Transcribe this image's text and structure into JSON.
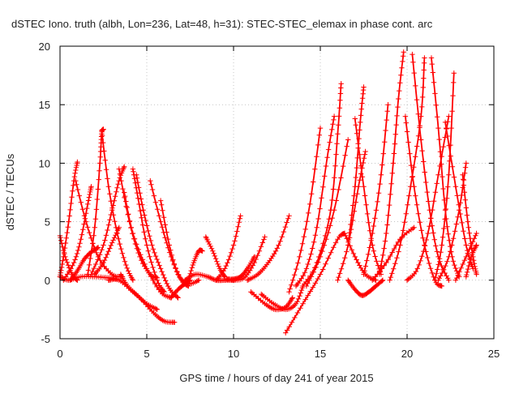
{
  "chart_data": {
    "type": "scatter",
    "title": "dSTEC Iono. truth (albh, Lon=236, Lat=48, h=31): STEC-STEC_elemax in phase cont. arc",
    "xlabel": "GPS time / hours of day 241 of year 2015",
    "ylabel": "dSTEC  / TECUs",
    "xlim": [
      0,
      25
    ],
    "ylim": [
      -5,
      20
    ],
    "xticks": [
      "0",
      "5",
      "10",
      "15",
      "20",
      "25"
    ],
    "yticks": [
      "-5",
      "0",
      "5",
      "10",
      "15",
      "20"
    ],
    "grid": true,
    "marker": "+",
    "color": "#ff0000",
    "series": [
      {
        "x": [
          0.0,
          0.3,
          0.7,
          1.0
        ],
        "y": [
          3.8,
          2.0,
          0.5,
          0.0
        ]
      },
      {
        "x": [
          0.0,
          0.2,
          0.5,
          0.8,
          1.0
        ],
        "y": [
          0.3,
          2.0,
          5.0,
          8.5,
          10.1
        ]
      },
      {
        "x": [
          0.2,
          0.8,
          1.2,
          1.6,
          1.8
        ],
        "y": [
          0.0,
          1.5,
          3.5,
          6.5,
          8.0
        ]
      },
      {
        "x": [
          0.0,
          0.5,
          1.2,
          2.0,
          2.8,
          3.3
        ],
        "y": [
          0.3,
          0.0,
          0.3,
          0.3,
          0.2,
          0.1
        ]
      },
      {
        "x": [
          0.6,
          1.0,
          1.4,
          1.8,
          2.2
        ],
        "y": [
          0.0,
          0.8,
          1.8,
          2.4,
          2.8
        ]
      },
      {
        "x": [
          0.9,
          1.5,
          2.2,
          3.0,
          3.6
        ],
        "y": [
          8.5,
          5.0,
          2.0,
          0.5,
          0.3
        ]
      },
      {
        "x": [
          1.6,
          2.0,
          2.3,
          2.4,
          2.5
        ],
        "y": [
          0.5,
          4.5,
          10.0,
          12.5,
          12.9
        ]
      },
      {
        "x": [
          2.4,
          2.8,
          3.3,
          3.8,
          4.2
        ],
        "y": [
          12.8,
          8.0,
          4.0,
          1.3,
          0.0
        ]
      },
      {
        "x": [
          1.8,
          2.5,
          3.0,
          3.4,
          3.7
        ],
        "y": [
          0.5,
          3.0,
          6.0,
          8.5,
          9.7
        ]
      },
      {
        "x": [
          3.4,
          4.0,
          4.6,
          5.2,
          5.6
        ],
        "y": [
          9.5,
          5.0,
          2.0,
          0.5,
          0.2
        ]
      },
      {
        "x": [
          2.0,
          2.5,
          3.0,
          3.4
        ],
        "y": [
          0.5,
          1.5,
          3.2,
          4.5
        ]
      },
      {
        "x": [
          2.8,
          3.4,
          4.2,
          5.0,
          5.6
        ],
        "y": [
          0.0,
          0.0,
          -1.0,
          -2.0,
          -2.5
        ]
      },
      {
        "x": [
          3.5,
          3.9,
          4.6,
          5.4,
          6.0,
          6.6
        ],
        "y": [
          0.5,
          -0.5,
          -1.5,
          -2.8,
          -3.5,
          -3.6
        ]
      },
      {
        "x": [
          3.7,
          4.2,
          5.0,
          5.8,
          6.4
        ],
        "y": [
          7.5,
          4.0,
          1.0,
          -1.0,
          -1.5
        ]
      },
      {
        "x": [
          4.2,
          4.5,
          5.0,
          5.6,
          6.0
        ],
        "y": [
          9.5,
          7.0,
          3.0,
          0.0,
          -1.0
        ]
      },
      {
        "x": [
          4.4,
          4.8,
          5.3,
          5.8,
          6.3,
          6.8
        ],
        "y": [
          9.0,
          6.0,
          3.0,
          1.0,
          -0.7,
          -1.5
        ]
      },
      {
        "x": [
          5.2,
          5.8,
          6.4,
          7.0,
          7.4
        ],
        "y": [
          8.5,
          5.0,
          2.0,
          0.0,
          -0.5
        ]
      },
      {
        "x": [
          5.8,
          6.3,
          6.8,
          7.4,
          8.0
        ],
        "y": [
          6.8,
          3.0,
          0.5,
          -0.3,
          0.0
        ]
      },
      {
        "x": [
          6.4,
          6.8,
          7.2,
          7.5
        ],
        "y": [
          -1.5,
          -0.8,
          -0.3,
          0.0
        ]
      },
      {
        "x": [
          7.2,
          7.8,
          8.5,
          9.0,
          9.5,
          10.0
        ],
        "y": [
          0.0,
          0.5,
          0.3,
          0.0,
          0.0,
          0.0
        ]
      },
      {
        "x": [
          7.4,
          7.7,
          8.0,
          8.2
        ],
        "y": [
          0.0,
          1.5,
          2.5,
          2.5
        ]
      },
      {
        "x": [
          8.4,
          8.8,
          9.2,
          9.5
        ],
        "y": [
          3.7,
          2.5,
          1.0,
          0.3
        ]
      },
      {
        "x": [
          9.0,
          9.5,
          10.0,
          10.4
        ],
        "y": [
          0.0,
          1.0,
          3.0,
          5.5
        ]
      },
      {
        "x": [
          9.6,
          10.0,
          10.4,
          10.8,
          11.2
        ],
        "y": [
          0.1,
          0.1,
          0.3,
          1.0,
          2.0
        ]
      },
      {
        "x": [
          10.0,
          10.6,
          11.2,
          11.8
        ],
        "y": [
          0.0,
          0.2,
          1.5,
          3.7
        ]
      },
      {
        "x": [
          10.8,
          11.4,
          12.0,
          12.6,
          13.2
        ],
        "y": [
          0.0,
          0.5,
          1.5,
          3.0,
          5.5
        ]
      },
      {
        "x": [
          11.0,
          11.8,
          12.4,
          13.0,
          13.4
        ],
        "y": [
          -1.0,
          -2.0,
          -2.5,
          -2.3,
          -1.5
        ]
      },
      {
        "x": [
          11.6,
          12.3,
          13.0,
          13.6,
          14.0
        ],
        "y": [
          -1.2,
          -2.0,
          -2.5,
          -2.0,
          -0.5
        ]
      },
      {
        "x": [
          13.0,
          14.0,
          15.0,
          16.0,
          16.4
        ],
        "y": [
          -4.5,
          -2.0,
          0.5,
          3.5,
          4.0
        ]
      },
      {
        "x": [
          13.2,
          13.8,
          14.4,
          15.0
        ],
        "y": [
          -1.0,
          2.0,
          6.5,
          13.0
        ]
      },
      {
        "x": [
          13.6,
          14.2,
          14.8,
          15.4,
          15.8
        ],
        "y": [
          -0.5,
          1.0,
          4.5,
          10.5,
          14.0
        ]
      },
      {
        "x": [
          14.0,
          14.8,
          15.6,
          16.0,
          16.2
        ],
        "y": [
          -0.5,
          1.5,
          6.0,
          12.5,
          16.8
        ]
      },
      {
        "x": [
          14.2,
          15.0,
          15.8,
          16.6
        ],
        "y": [
          -0.5,
          2.0,
          6.0,
          12.0
        ]
      },
      {
        "x": [
          16.4,
          17.0,
          17.6,
          18.2
        ],
        "y": [
          4.0,
          2.0,
          0.5,
          0.0
        ]
      },
      {
        "x": [
          16.0,
          16.6,
          17.2,
          17.6
        ],
        "y": [
          0.0,
          3.0,
          8.0,
          11.0
        ]
      },
      {
        "x": [
          16.6,
          17.0,
          17.3,
          17.5
        ],
        "y": [
          3.0,
          8.0,
          13.5,
          16.5
        ]
      },
      {
        "x": [
          17.0,
          17.5,
          18.0,
          18.5
        ],
        "y": [
          13.8,
          8.0,
          3.0,
          0.5
        ]
      },
      {
        "x": [
          16.6,
          17.0,
          17.4,
          17.8,
          18.2,
          18.6
        ],
        "y": [
          0.0,
          -0.8,
          -1.3,
          -1.0,
          -0.5,
          0.0
        ]
      },
      {
        "x": [
          17.5,
          18.0,
          18.5,
          18.9
        ],
        "y": [
          0.5,
          4.0,
          9.0,
          15.0
        ]
      },
      {
        "x": [
          18.4,
          18.8,
          19.2,
          19.5,
          19.8
        ],
        "y": [
          0.5,
          4.0,
          10.0,
          15.5,
          19.5
        ]
      },
      {
        "x": [
          18.0,
          18.8,
          19.6,
          20.4
        ],
        "y": [
          0.0,
          1.5,
          3.5,
          4.5
        ]
      },
      {
        "x": [
          19.0,
          19.6,
          20.2,
          20.8,
          21.0
        ],
        "y": [
          0.0,
          3.0,
          8.0,
          14.0,
          19.0
        ]
      },
      {
        "x": [
          19.9,
          20.4,
          21.0,
          21.6,
          22.0
        ],
        "y": [
          14.0,
          8.0,
          3.0,
          0.0,
          -0.5
        ]
      },
      {
        "x": [
          20.3,
          20.8,
          21.3,
          21.8,
          22.4
        ],
        "y": [
          19.3,
          12.0,
          6.0,
          2.0,
          0.0
        ]
      },
      {
        "x": [
          20.0,
          20.6,
          21.2,
          21.8,
          22.4
        ],
        "y": [
          0.0,
          1.0,
          4.0,
          9.0,
          14.0
        ]
      },
      {
        "x": [
          21.4,
          21.8,
          22.2,
          22.6,
          23.0
        ],
        "y": [
          19.0,
          13.0,
          6.0,
          2.0,
          0.3
        ]
      },
      {
        "x": [
          21.6,
          22.0,
          22.4,
          22.7
        ],
        "y": [
          0.0,
          3.0,
          9.0,
          17.7
        ]
      },
      {
        "x": [
          21.8,
          22.4,
          23.0,
          23.4
        ],
        "y": [
          0.0,
          2.0,
          6.0,
          10.0
        ]
      },
      {
        "x": [
          22.2,
          22.8,
          23.4,
          23.8
        ],
        "y": [
          13.5,
          8.0,
          3.0,
          1.0
        ]
      },
      {
        "x": [
          22.8,
          23.4,
          24.0
        ],
        "y": [
          0.0,
          2.0,
          4.0
        ]
      },
      {
        "x": [
          23.2,
          23.5,
          23.8,
          24.0
        ],
        "y": [
          9.0,
          5.0,
          2.0,
          0.5
        ]
      },
      {
        "x": [
          23.4,
          23.7,
          24.0
        ],
        "y": [
          0.3,
          2.0,
          3.0
        ]
      }
    ]
  }
}
